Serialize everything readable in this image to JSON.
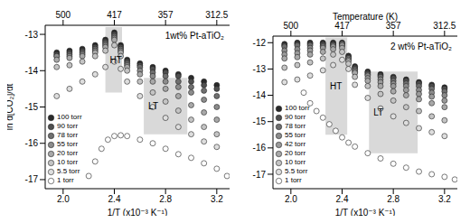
{
  "chart_data": [
    {
      "type": "scatter",
      "annotations": [
        "1wt% Pt-aTiO₂"
      ],
      "x_label": "1/T (x10⁻³ K⁻¹)",
      "y_label": "ln d[CO₂]/dt",
      "marker": "circle",
      "legend": "lower left",
      "xlim": [
        1.86,
        3.3
      ],
      "xticks": [
        {
          "value": 2,
          "label": "2.0"
        },
        {
          "value": 2.4,
          "label": "2.4"
        },
        {
          "value": 2.8,
          "label": "2.8"
        },
        {
          "value": 3.2,
          "label": "3.2"
        }
      ],
      "x2lim": [
        1.86,
        3.3
      ],
      "x2ticks": [
        {
          "value": 2,
          "label": "500"
        },
        {
          "value": 2.4,
          "label": "417"
        },
        {
          "value": 2.8,
          "label": "357"
        },
        {
          "value": 3.2,
          "label": "312.5"
        }
      ],
      "ylim": [
        -17.25,
        -12.75
      ],
      "yticks": [
        -13,
        -14,
        -15,
        -16,
        -17
      ],
      "shaded_regions": [
        {
          "label": "HT",
          "xlim": [
            2.33,
            2.46
          ],
          "ylim": [
            -14.6,
            -12.8
          ]
        },
        {
          "label": "LT",
          "xlim": [
            2.63,
            2.97
          ],
          "ylim": [
            -15.75,
            -14.2
          ]
        }
      ],
      "series": [
        {
          "name": "100 torr",
          "color": "#2a2a2a",
          "x": [
            1.95,
            2.05,
            2.15,
            2.25,
            2.33,
            2.4,
            2.45,
            2.5,
            2.6,
            2.7,
            2.8,
            2.9,
            3.0,
            3.1,
            3.2
          ],
          "values": [
            -13.5,
            -13.45,
            -13.4,
            -13.3,
            -13.15,
            -12.95,
            -13.3,
            -13.7,
            -13.8,
            -13.9,
            -14.0,
            -14.1,
            -14.2,
            -14.3,
            -14.4
          ]
        },
        {
          "name": "90 torr",
          "color": "#505050",
          "x": [
            1.95,
            2.05,
            2.15,
            2.25,
            2.33,
            2.4,
            2.45,
            2.5,
            2.6,
            2.7,
            2.8,
            2.9,
            3.0,
            3.1,
            3.2
          ],
          "values": [
            -13.55,
            -13.5,
            -13.45,
            -13.35,
            -13.2,
            -13.0,
            -13.35,
            -13.75,
            -13.85,
            -13.95,
            -14.05,
            -14.15,
            -14.3,
            -14.4,
            -14.5
          ]
        },
        {
          "name": "78 torr",
          "color": "#707070",
          "x": [
            1.95,
            2.05,
            2.15,
            2.25,
            2.33,
            2.4,
            2.45,
            2.5,
            2.6,
            2.7,
            2.8,
            2.9,
            3.0,
            3.1,
            3.2
          ],
          "values": [
            -13.6,
            -13.55,
            -13.5,
            -13.4,
            -13.25,
            -13.05,
            -13.4,
            -13.8,
            -13.9,
            -14.05,
            -14.15,
            -14.3,
            -14.45,
            -14.55,
            -14.7
          ]
        },
        {
          "name": "55 torr",
          "color": "#8c8c8c",
          "x": [
            1.95,
            2.05,
            2.15,
            2.25,
            2.33,
            2.4,
            2.45,
            2.5,
            2.6,
            2.7,
            2.8,
            2.9,
            3.0,
            3.1,
            3.2
          ],
          "values": [
            -13.6,
            -13.6,
            -13.55,
            -13.45,
            -13.3,
            -13.1,
            -13.45,
            -13.85,
            -14.0,
            -14.15,
            -14.3,
            -14.45,
            -14.6,
            -14.8,
            -15.0
          ]
        },
        {
          "name": "20 torr",
          "color": "#a8a8a8",
          "x": [
            1.95,
            2.05,
            2.15,
            2.25,
            2.33,
            2.4,
            2.45,
            2.5,
            2.6,
            2.7,
            2.8,
            2.9,
            3.0,
            3.1,
            3.2
          ],
          "values": [
            -13.7,
            -13.65,
            -13.6,
            -13.5,
            -13.35,
            -13.15,
            -13.5,
            -13.9,
            -14.1,
            -14.3,
            -14.5,
            -14.7,
            -14.95,
            -15.15,
            -15.35
          ]
        },
        {
          "name": "10 torr",
          "color": "#c4c4c4",
          "x": [
            1.95,
            2.05,
            2.15,
            2.25,
            2.33,
            2.4,
            2.45,
            2.5,
            2.6,
            2.7,
            2.8,
            2.9,
            3.0,
            3.1,
            3.2
          ],
          "values": [
            -13.9,
            -13.85,
            -13.75,
            -13.6,
            -13.45,
            -13.3,
            -13.6,
            -14.0,
            -14.3,
            -14.6,
            -14.85,
            -15.1,
            -15.35,
            -15.55,
            -15.75
          ]
        },
        {
          "name": "5.5 torr",
          "color": "#dedede",
          "x": [
            1.95,
            2.05,
            2.15,
            2.25,
            2.33,
            2.4,
            2.45,
            2.5,
            2.6,
            2.7,
            2.8,
            2.9,
            3.0,
            3.1,
            3.2
          ],
          "values": [
            -14.7,
            -14.5,
            -14.3,
            -14.1,
            -13.9,
            -13.75,
            -13.95,
            -14.3,
            -14.7,
            -15.0,
            -15.3,
            -15.55,
            -15.75,
            -15.95,
            -16.1
          ]
        },
        {
          "name": "1 torr",
          "color": "#ffffff",
          "x": [
            2.2,
            2.25,
            2.3,
            2.35,
            2.4,
            2.45,
            2.5,
            2.6,
            2.7,
            2.8,
            2.9,
            3.0,
            3.1,
            3.2,
            3.28
          ],
          "values": [
            -16.9,
            -16.5,
            -16.15,
            -15.9,
            -15.8,
            -15.78,
            -15.8,
            -15.9,
            -16.0,
            -16.15,
            -16.3,
            -16.4,
            -16.55,
            -16.7,
            -16.9
          ]
        }
      ]
    },
    {
      "type": "scatter",
      "annotations": [
        "2 wt% Pt-aTiO₂"
      ],
      "x_label": "1/T (x10⁻³ K⁻¹)",
      "x2_label": "Temperature (K)",
      "marker": "circle",
      "legend": "lower left",
      "xlim": [
        1.86,
        3.3
      ],
      "xticks": [
        {
          "value": 2,
          "label": "2.0"
        },
        {
          "value": 2.4,
          "label": "2.4"
        },
        {
          "value": 2.8,
          "label": "2.8"
        },
        {
          "value": 3.2,
          "label": "3.2"
        }
      ],
      "x2lim": [
        1.86,
        3.3
      ],
      "x2ticks": [
        {
          "value": 2,
          "label": "500"
        },
        {
          "value": 2.4,
          "label": "417"
        },
        {
          "value": 2.8,
          "label": "357"
        },
        {
          "value": 3.2,
          "label": "312.5"
        }
      ],
      "ylim": [
        -17.55,
        -11.75
      ],
      "yticks": [
        -12,
        -13,
        -14,
        -15,
        -16,
        -17
      ],
      "shaded_regions": [
        {
          "label": "HT",
          "xlim": [
            2.27,
            2.44
          ],
          "ylim": [
            -15.5,
            -11.8
          ]
        },
        {
          "label": "LT",
          "xlim": [
            2.61,
            2.99
          ],
          "ylim": [
            -16.2,
            -13.1
          ]
        }
      ],
      "series": [
        {
          "name": "100 torr",
          "color": "#2a2a2a",
          "x": [
            1.95,
            2.05,
            2.15,
            2.25,
            2.33,
            2.4,
            2.45,
            2.5,
            2.6,
            2.7,
            2.8,
            2.9,
            3.0,
            3.1,
            3.2
          ],
          "values": [
            -12.05,
            -12.0,
            -12.0,
            -12.0,
            -12.0,
            -12.0,
            -12.5,
            -12.9,
            -13.1,
            -13.2,
            -13.3,
            -13.4,
            -13.5,
            -13.6,
            -13.7
          ]
        },
        {
          "name": "90 torr",
          "color": "#505050",
          "x": [
            1.95,
            2.05,
            2.15,
            2.25,
            2.33,
            2.4,
            2.45,
            2.5,
            2.6,
            2.7,
            2.8,
            2.9,
            3.0,
            3.1,
            3.2
          ],
          "values": [
            -12.1,
            -12.05,
            -12.05,
            -12.05,
            -12.05,
            -12.05,
            -12.55,
            -12.95,
            -13.15,
            -13.25,
            -13.35,
            -13.45,
            -13.55,
            -13.65,
            -13.75
          ]
        },
        {
          "name": "78 torr",
          "color": "#707070",
          "x": [
            1.95,
            2.05,
            2.15,
            2.25,
            2.33,
            2.4,
            2.45,
            2.5,
            2.6,
            2.7,
            2.8,
            2.9,
            3.0,
            3.1,
            3.2
          ],
          "values": [
            -12.15,
            -12.1,
            -12.1,
            -12.1,
            -12.1,
            -12.1,
            -12.6,
            -13.0,
            -13.2,
            -13.3,
            -13.45,
            -13.55,
            -13.65,
            -13.75,
            -13.85
          ]
        },
        {
          "name": "55 torr",
          "color": "#8c8c8c",
          "x": [
            1.95,
            2.05,
            2.15,
            2.25,
            2.33,
            2.4,
            2.45,
            2.5,
            2.6,
            2.7,
            2.8,
            2.9,
            3.0,
            3.1,
            3.2
          ],
          "values": [
            -12.3,
            -12.25,
            -12.2,
            -12.15,
            -12.1,
            -12.05,
            -12.6,
            -13.05,
            -13.25,
            -13.4,
            -13.55,
            -13.65,
            -13.8,
            -13.9,
            -14.0
          ]
        },
        {
          "name": "42 torr",
          "color": "#9a9a9a",
          "x": [
            1.95,
            2.05,
            2.15,
            2.25,
            2.33,
            2.4,
            2.45,
            2.5,
            2.6,
            2.7,
            2.8,
            2.9,
            3.0,
            3.1,
            3.2
          ],
          "values": [
            -12.45,
            -12.4,
            -12.3,
            -12.2,
            -12.15,
            -12.1,
            -12.65,
            -13.1,
            -13.35,
            -13.5,
            -13.65,
            -13.8,
            -13.95,
            -14.05,
            -14.2
          ]
        },
        {
          "name": "20 torr",
          "color": "#a8a8a8",
          "x": [
            1.95,
            2.05,
            2.15,
            2.25,
            2.33,
            2.4,
            2.45,
            2.5,
            2.6,
            2.7,
            2.8,
            2.9,
            3.0,
            3.1,
            3.2
          ],
          "values": [
            -12.6,
            -12.55,
            -12.45,
            -12.35,
            -12.25,
            -12.2,
            -12.7,
            -13.15,
            -13.45,
            -13.65,
            -13.85,
            -14.0,
            -14.15,
            -14.3,
            -14.45
          ]
        },
        {
          "name": "10 torr",
          "color": "#c4c4c4",
          "x": [
            1.95,
            2.05,
            2.15,
            2.25,
            2.33,
            2.4,
            2.45,
            2.5,
            2.6,
            2.7,
            2.8,
            2.9,
            3.0,
            3.1,
            3.2
          ],
          "values": [
            -12.95,
            -12.85,
            -12.75,
            -12.6,
            -12.45,
            -12.35,
            -12.8,
            -13.3,
            -13.65,
            -13.95,
            -14.2,
            -14.45,
            -14.6,
            -14.8,
            -14.95
          ]
        },
        {
          "name": "5.5 torr",
          "color": "#dedede",
          "x": [
            1.95,
            2.05,
            2.15,
            2.25,
            2.33,
            2.4,
            2.45,
            2.5,
            2.6,
            2.7,
            2.8,
            2.9,
            3.0,
            3.1,
            3.2
          ],
          "values": [
            -13.5,
            -13.4,
            -13.25,
            -13.05,
            -12.85,
            -12.65,
            -13.0,
            -13.6,
            -14.1,
            -14.5,
            -14.8,
            -15.05,
            -15.25,
            -15.4,
            -15.55
          ]
        },
        {
          "name": "1 torr",
          "color": "#ffffff",
          "x": [
            2.1,
            2.15,
            2.2,
            2.25,
            2.3,
            2.35,
            2.4,
            2.45,
            2.5,
            2.6,
            2.7,
            2.8,
            2.9,
            3.0,
            3.1,
            3.2,
            3.28
          ],
          "values": [
            -13.9,
            -14.3,
            -14.6,
            -14.85,
            -15.1,
            -15.35,
            -15.6,
            -15.8,
            -15.95,
            -16.2,
            -16.4,
            -16.6,
            -16.75,
            -16.9,
            -17.0,
            -17.1,
            -17.2
          ]
        }
      ]
    }
  ]
}
